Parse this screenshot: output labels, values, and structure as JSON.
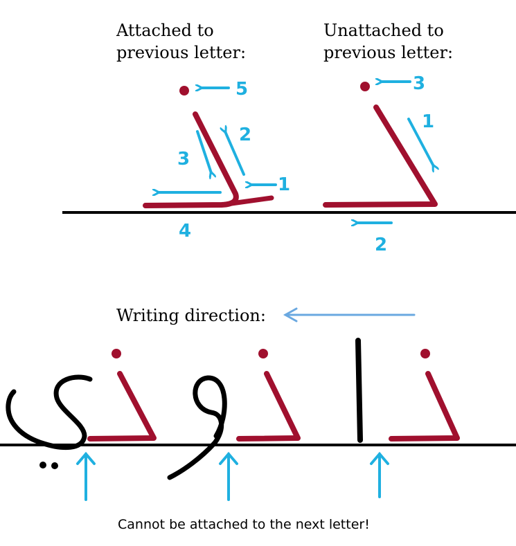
{
  "labels": {
    "attached_line1": "Attached to",
    "attached_line2": "previous letter:",
    "unattached_line1": "Unattached to",
    "unattached_line2": "previous letter:",
    "writing_direction": "Writing direction:",
    "caption": "Cannot be attached to the next letter!"
  },
  "attached_steps": [
    "1",
    "2",
    "3",
    "4",
    "5"
  ],
  "unattached_steps": [
    "1",
    "2",
    "3"
  ],
  "colors": {
    "letter": "#a0102e",
    "other_letters": "#000000",
    "stroke_arrows": "#1fb0e0",
    "direction_arrow": "#6aa8e0",
    "baseline": "#000000"
  },
  "icons": {
    "direction": "arrow-left-icon",
    "pointer": "arrow-up-icon"
  }
}
